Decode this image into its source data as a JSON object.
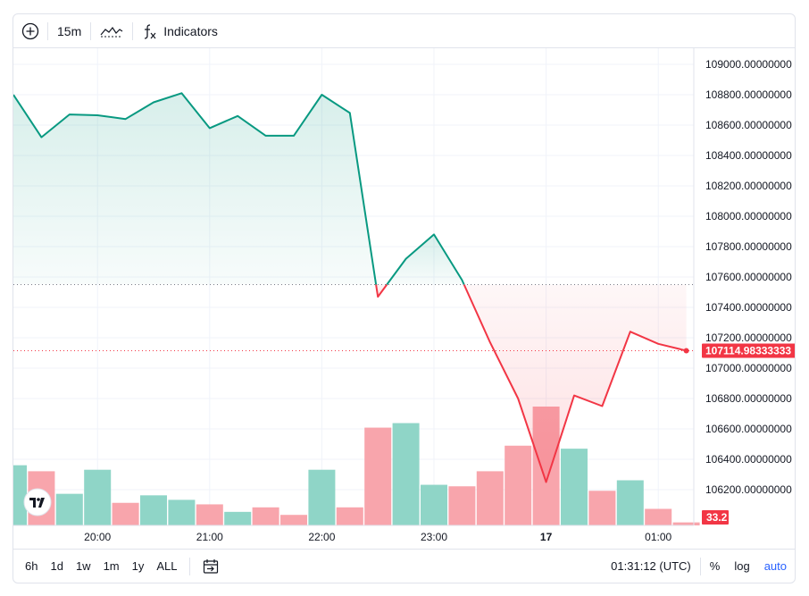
{
  "toolbar": {
    "add_symbol_icon": "plus-circle-icon",
    "interval_label": "15m",
    "chart_type_icon": "line-chart-icon",
    "indicators_icon": "fx-icon",
    "indicators_label": "Indicators"
  },
  "price_scale": {
    "ticks": [
      "109000.00000000",
      "108800.00000000",
      "108600.00000000",
      "108400.00000000",
      "108200.00000000",
      "108000.00000000",
      "107800.00000000",
      "107600.00000000",
      "107400.00000000",
      "107200.00000000",
      "107000.00000000",
      "106800.00000000",
      "106600.00000000",
      "106400.00000000",
      "106200.00000000"
    ],
    "last_price_label": "107114.98333333",
    "volume_label": "33.2"
  },
  "time_scale": {
    "ticks": [
      "20:00",
      "21:00",
      "22:00",
      "23:00",
      "17",
      "01:00"
    ]
  },
  "bottombar": {
    "ranges": [
      "6h",
      "1d",
      "1w",
      "1m",
      "1y",
      "ALL"
    ],
    "active_range": "6h",
    "goto_icon": "calendar-goto-icon",
    "clock": "01:31:12 (UTC)",
    "percent_label": "%",
    "log_label": "log",
    "auto_label": "auto"
  },
  "logo_icon": "tradingview-logo-icon",
  "colors": {
    "up": "#089981",
    "down": "#f23645",
    "up_vol": "#8fd5c7",
    "down_vol": "#f8a5ac",
    "grid": "#f0f3fa",
    "text": "#131722"
  },
  "chart_data": {
    "type": "line",
    "baseline": 107550,
    "ylim": [
      106050,
      109100
    ],
    "last_value": 107114.98333333,
    "x": [
      "19:30",
      "19:45",
      "20:00",
      "20:15",
      "20:30",
      "20:45",
      "21:00",
      "21:15",
      "21:30",
      "21:45",
      "22:00",
      "22:15",
      "22:30",
      "22:45",
      "23:00",
      "23:15",
      "23:30",
      "23:45",
      "00:00",
      "00:15",
      "00:30",
      "00:45",
      "01:00",
      "01:15",
      "01:30"
    ],
    "series": [
      {
        "values": [
          108800,
          108520,
          108670,
          108665,
          108640,
          108750,
          108810,
          108580,
          108660,
          108530,
          108530,
          108800,
          108680,
          107470,
          107720,
          107880,
          107580,
          107170,
          106800,
          106250,
          106820,
          106750,
          107240,
          107160,
          107115
        ]
      }
    ],
    "volume": [
      {
        "value": 40,
        "dir": "up"
      },
      {
        "value": 36,
        "dir": "down"
      },
      {
        "value": 21,
        "dir": "up"
      },
      {
        "value": 37,
        "dir": "up"
      },
      {
        "value": 15,
        "dir": "down"
      },
      {
        "value": 20,
        "dir": "up"
      },
      {
        "value": 17,
        "dir": "up"
      },
      {
        "value": 14,
        "dir": "down"
      },
      {
        "value": 9,
        "dir": "up"
      },
      {
        "value": 12,
        "dir": "down"
      },
      {
        "value": 7,
        "dir": "down"
      },
      {
        "value": 37,
        "dir": "up"
      },
      {
        "value": 12,
        "dir": "down"
      },
      {
        "value": 65,
        "dir": "down"
      },
      {
        "value": 68,
        "dir": "up"
      },
      {
        "value": 27,
        "dir": "up"
      },
      {
        "value": 26,
        "dir": "down"
      },
      {
        "value": 36,
        "dir": "down"
      },
      {
        "value": 53,
        "dir": "down"
      },
      {
        "value": 79,
        "dir": "down"
      },
      {
        "value": 51,
        "dir": "up"
      },
      {
        "value": 23,
        "dir": "down"
      },
      {
        "value": 30,
        "dir": "up"
      },
      {
        "value": 11,
        "dir": "down"
      },
      {
        "value": 2,
        "dir": "down"
      }
    ]
  }
}
